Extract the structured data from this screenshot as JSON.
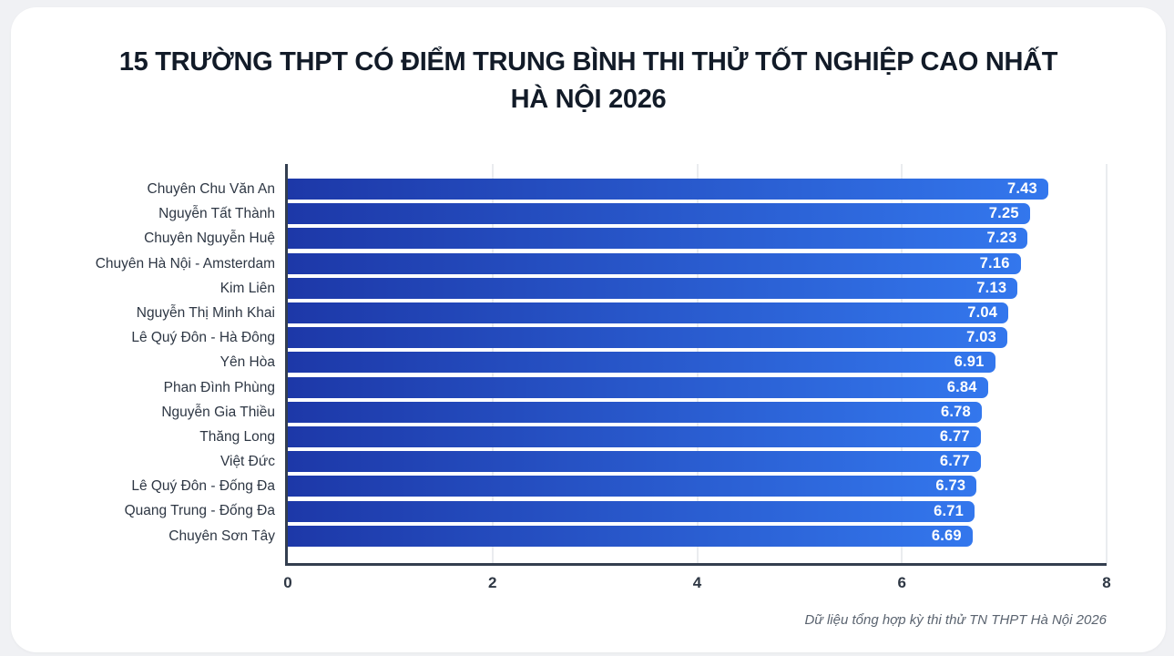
{
  "title": {
    "line1": "15 TRƯỜNG THPT CÓ ĐIỂM TRUNG BÌNH THI THỬ TỐT NGHIỆP CAO NHẤT",
    "line2": "HÀ NỘI 2026"
  },
  "chart_data": {
    "type": "bar",
    "orientation": "horizontal",
    "title": "15 TRƯỜNG THPT CÓ ĐIỂM TRUNG BÌNH THI THỬ TỐT NGHIỆP CAO NHẤT HÀ NỘI 2026",
    "categories": [
      "Chuyên Chu Văn An",
      "Nguyễn Tất Thành",
      "Chuyên Nguyễn Huệ",
      "Chuyên Hà Nội - Amsterdam",
      "Kim Liên",
      "Nguyễn Thị Minh Khai",
      "Lê Quý Đôn - Hà Đông",
      "Yên Hòa",
      "Phan Đình Phùng",
      "Nguyễn Gia Thiều",
      "Thăng Long",
      "Việt Đức",
      "Lê Quý Đôn - Đống Đa",
      "Quang Trung - Đống Đa",
      "Chuyên Sơn Tây"
    ],
    "values": [
      7.43,
      7.25,
      7.23,
      7.16,
      7.13,
      7.04,
      7.03,
      6.91,
      6.84,
      6.78,
      6.77,
      6.77,
      6.73,
      6.71,
      6.69
    ],
    "xlabel": "",
    "ylabel": "",
    "xlim": [
      0,
      8
    ],
    "x_ticks": [
      0,
      2,
      4,
      6,
      8
    ],
    "grid": true,
    "legend": "none",
    "value_labels": "inside-end"
  },
  "footer": {
    "source": "Dữ liệu tổng hợp kỳ thi thử TN THPT Hà Nội 2026"
  },
  "colors": {
    "page_background": "#f0f1f4",
    "card_background": "#ffffff",
    "title_text": "#121b28",
    "label_text": "#2e3744",
    "axis_line": "#333e4f",
    "gridline": "#eaecef",
    "bar_gradient_start": "#1d38a8",
    "bar_gradient_end": "#3377ed",
    "bar_value_text": "#ffffff",
    "footer_text": "#5b6470"
  }
}
